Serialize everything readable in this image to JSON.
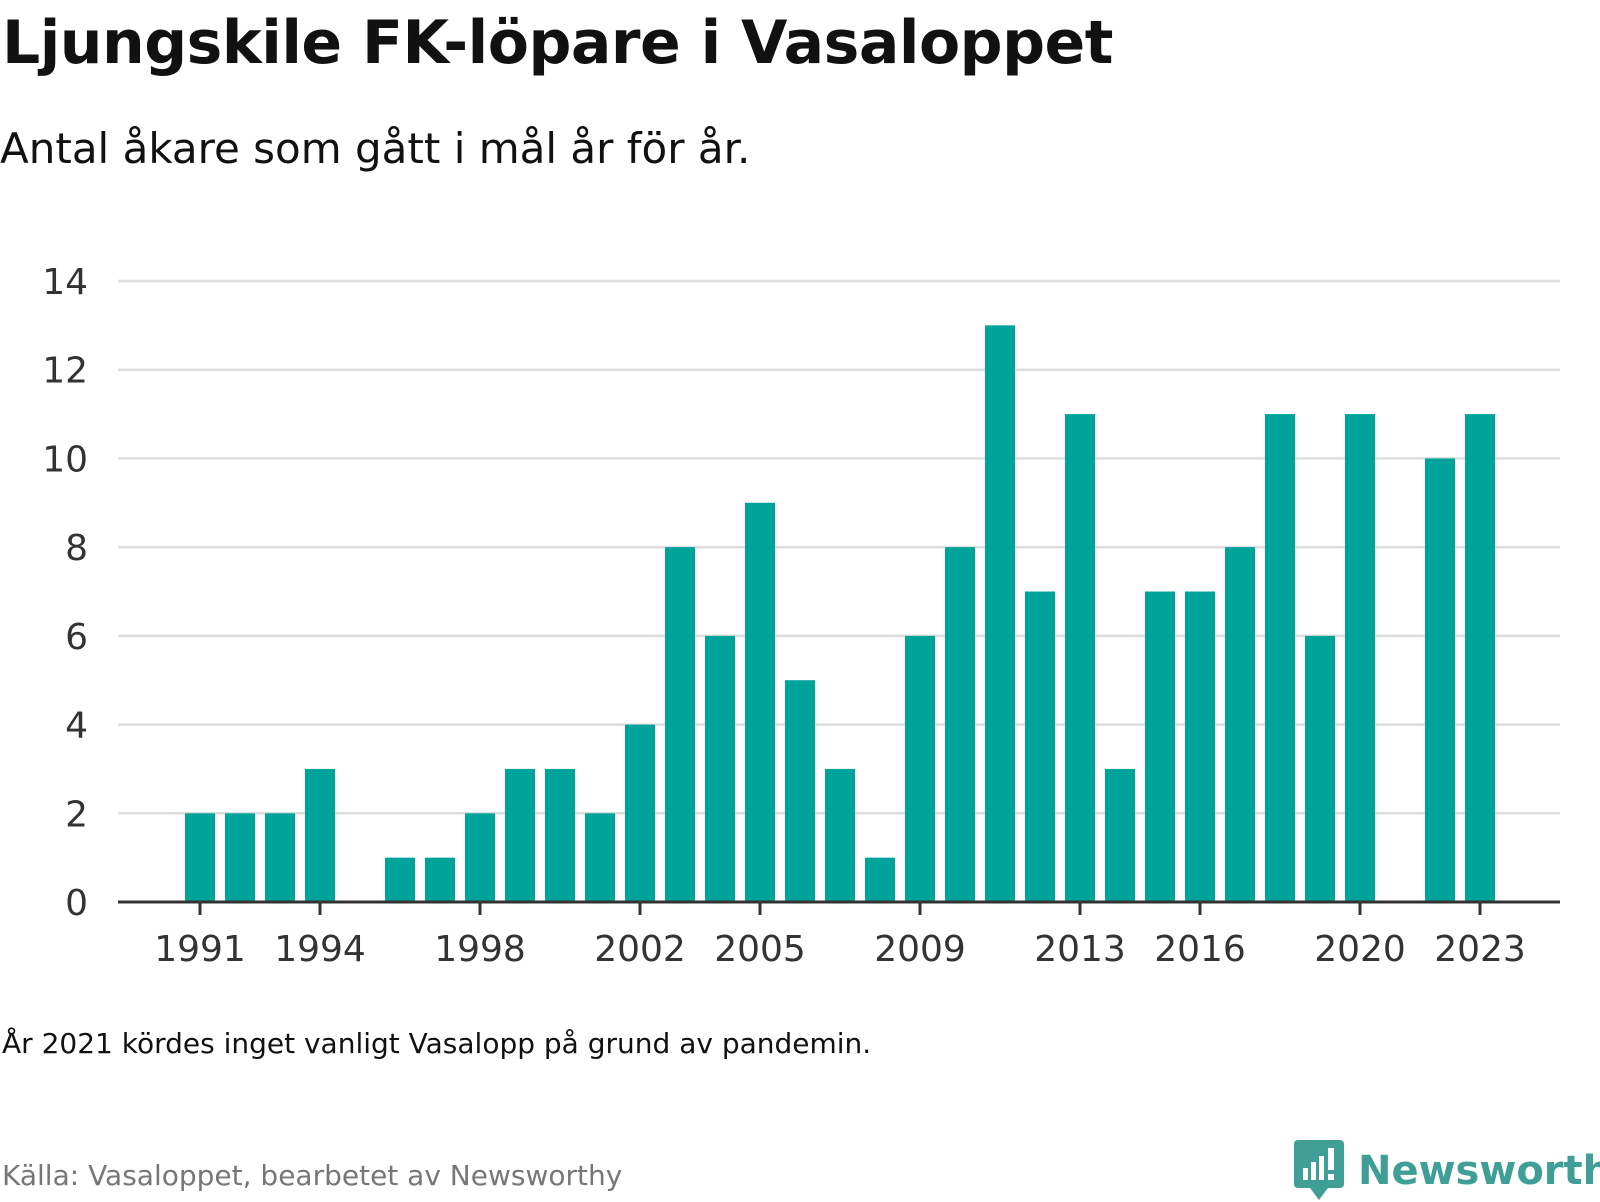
{
  "header": {
    "title": "Ljungskile FK-löpare i Vasaloppet",
    "subtitle": "Antal åkare som gått i mål år för år."
  },
  "footer": {
    "note": "År 2021 kördes inget vanligt Vasalopp på grund av pandemin.",
    "source": "Källa: Vasaloppet, bearbetet av Newsworthy",
    "brand": "Newsworthy"
  },
  "colors": {
    "bar": "#00a39a",
    "grid": "#dddddd",
    "axis": "#333333",
    "brand": "#3f9f96"
  },
  "brand_icon": "newsworthy-logo-icon",
  "chart_data": {
    "type": "bar",
    "title": "Ljungskile FK-löpare i Vasaloppet",
    "subtitle": "Antal åkare som gått i mål år för år.",
    "xlabel": "",
    "ylabel": "",
    "ylim": [
      0,
      14
    ],
    "yticks": [
      0,
      2,
      4,
      6,
      8,
      10,
      12,
      14
    ],
    "xticks": [
      1991,
      1994,
      1998,
      2002,
      2005,
      2009,
      2013,
      2016,
      2020,
      2023
    ],
    "grid": true,
    "legend": "none",
    "categories": [
      1991,
      1992,
      1993,
      1994,
      1995,
      1996,
      1997,
      1998,
      1999,
      2000,
      2001,
      2002,
      2003,
      2004,
      2005,
      2006,
      2007,
      2008,
      2009,
      2010,
      2011,
      2012,
      2013,
      2014,
      2015,
      2016,
      2017,
      2018,
      2019,
      2020,
      2021,
      2022,
      2023
    ],
    "values": [
      2,
      2,
      2,
      3,
      null,
      1,
      1,
      2,
      3,
      3,
      2,
      4,
      8,
      6,
      9,
      5,
      3,
      1,
      6,
      8,
      13,
      7,
      11,
      3,
      7,
      7,
      8,
      11,
      6,
      11,
      null,
      10,
      11
    ]
  }
}
